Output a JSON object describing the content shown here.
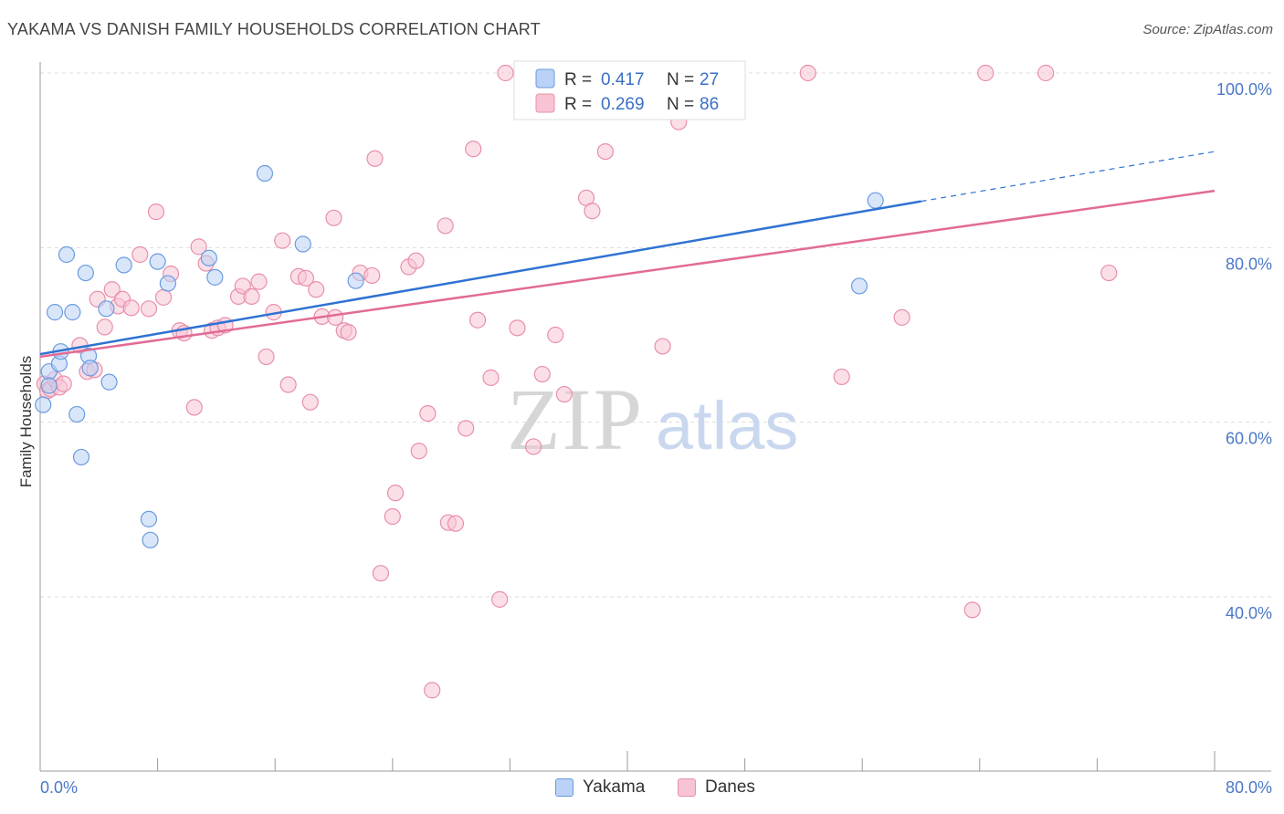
{
  "title": "YAKAMA VS DANISH FAMILY HOUSEHOLDS CORRELATION CHART",
  "source": "Source: ZipAtlas.com",
  "watermark": {
    "zip": "ZIP",
    "atlas": "atlas"
  },
  "legend": {
    "r_label": "R =",
    "n_label": "N =",
    "entries": [
      {
        "r": "0.417",
        "n": "27"
      },
      {
        "r": "0.269",
        "n": "86"
      }
    ]
  },
  "colors": {
    "yakama_fill": "#b9d2f5",
    "yakama_stroke": "#6a9be0",
    "yakama_line": "#2f72d2",
    "danes_fill": "#f8c4d4",
    "danes_stroke": "#e88fab",
    "danes_line": "#e26b95",
    "tick_label": "#4a78c8",
    "grid": "#dddddd"
  },
  "chart_data": {
    "type": "scatter",
    "title": "YAKAMA VS DANISH FAMILY HOUSEHOLDS CORRELATION CHART",
    "xlabel": "",
    "ylabel": "Family Households",
    "xlim": [
      0,
      80
    ],
    "ylim": [
      20,
      104
    ],
    "x_tick_labels": [
      "0.0%",
      "80.0%"
    ],
    "y_ticks": [
      40,
      60,
      80,
      100
    ],
    "y_tick_labels": [
      "40.0%",
      "60.0%",
      "80.0%",
      "100.0%"
    ],
    "grid": true,
    "legend_position": "top-center",
    "series": [
      {
        "name": "Yakama",
        "r": 0.417,
        "n": 27,
        "trend": {
          "x0": 0,
          "y0": 67.8,
          "x1": 60,
          "y1": 85.3,
          "dashed_to_x": 80,
          "dashed_to_y": 91.0
        },
        "points": [
          [
            0.2,
            62.0
          ],
          [
            0.6,
            65.8
          ],
          [
            0.6,
            64.2
          ],
          [
            1.0,
            72.6
          ],
          [
            1.3,
            66.7
          ],
          [
            1.4,
            68.1
          ],
          [
            1.8,
            79.2
          ],
          [
            2.2,
            72.6
          ],
          [
            2.5,
            60.9
          ],
          [
            2.8,
            56.0
          ],
          [
            3.1,
            77.1
          ],
          [
            3.3,
            67.6
          ],
          [
            3.4,
            66.2
          ],
          [
            4.5,
            73.0
          ],
          [
            4.7,
            64.6
          ],
          [
            5.7,
            78.0
          ],
          [
            7.4,
            48.9
          ],
          [
            7.5,
            46.5
          ],
          [
            8.0,
            78.4
          ],
          [
            8.7,
            75.9
          ],
          [
            11.5,
            78.8
          ],
          [
            11.9,
            76.6
          ],
          [
            15.3,
            88.5
          ],
          [
            17.9,
            80.4
          ],
          [
            21.5,
            76.2
          ],
          [
            55.8,
            75.6
          ],
          [
            56.9,
            85.4
          ]
        ]
      },
      {
        "name": "Danes",
        "r": 0.269,
        "n": 86,
        "trend": {
          "x0": 0,
          "y0": 67.5,
          "x1": 80,
          "y1": 86.5
        },
        "points": [
          [
            0.3,
            64.4
          ],
          [
            0.5,
            63.6
          ],
          [
            0.7,
            63.8
          ],
          [
            1.0,
            64.9
          ],
          [
            1.3,
            64.0
          ],
          [
            1.6,
            64.4
          ],
          [
            2.7,
            68.8
          ],
          [
            3.2,
            65.8
          ],
          [
            3.7,
            66.0
          ],
          [
            3.9,
            74.1
          ],
          [
            4.4,
            70.9
          ],
          [
            4.9,
            75.2
          ],
          [
            5.3,
            73.3
          ],
          [
            5.6,
            74.1
          ],
          [
            6.2,
            73.1
          ],
          [
            6.8,
            79.2
          ],
          [
            7.4,
            73.0
          ],
          [
            7.9,
            84.1
          ],
          [
            8.4,
            74.3
          ],
          [
            8.9,
            77.0
          ],
          [
            9.5,
            70.5
          ],
          [
            9.8,
            70.2
          ],
          [
            10.5,
            61.7
          ],
          [
            10.8,
            80.1
          ],
          [
            11.3,
            78.2
          ],
          [
            11.7,
            70.5
          ],
          [
            12.1,
            70.8
          ],
          [
            12.6,
            71.1
          ],
          [
            13.5,
            74.4
          ],
          [
            13.8,
            75.6
          ],
          [
            14.4,
            74.4
          ],
          [
            14.9,
            76.1
          ],
          [
            15.4,
            67.5
          ],
          [
            15.9,
            72.6
          ],
          [
            16.5,
            80.8
          ],
          [
            16.9,
            64.3
          ],
          [
            17.6,
            76.7
          ],
          [
            18.1,
            76.5
          ],
          [
            18.4,
            62.3
          ],
          [
            18.8,
            75.2
          ],
          [
            19.2,
            72.1
          ],
          [
            20.0,
            83.4
          ],
          [
            20.1,
            72.0
          ],
          [
            20.7,
            70.5
          ],
          [
            21.0,
            70.3
          ],
          [
            21.8,
            77.1
          ],
          [
            22.6,
            76.8
          ],
          [
            22.8,
            90.2
          ],
          [
            23.2,
            42.7
          ],
          [
            24.0,
            49.2
          ],
          [
            24.2,
            51.9
          ],
          [
            25.1,
            77.8
          ],
          [
            25.6,
            78.5
          ],
          [
            25.8,
            56.7
          ],
          [
            26.4,
            61.0
          ],
          [
            26.7,
            29.3
          ],
          [
            27.6,
            82.5
          ],
          [
            27.8,
            48.5
          ],
          [
            28.3,
            48.4
          ],
          [
            29.0,
            59.3
          ],
          [
            29.5,
            91.3
          ],
          [
            29.8,
            71.7
          ],
          [
            30.7,
            65.1
          ],
          [
            31.3,
            39.7
          ],
          [
            31.7,
            100.0
          ],
          [
            32.5,
            70.8
          ],
          [
            33.6,
            57.2
          ],
          [
            34.2,
            65.5
          ],
          [
            35.1,
            70.0
          ],
          [
            35.7,
            63.2
          ],
          [
            36.7,
            100.0
          ],
          [
            37.2,
            85.7
          ],
          [
            37.6,
            84.2
          ],
          [
            38.5,
            91.0
          ],
          [
            41.4,
            100.0
          ],
          [
            42.4,
            68.7
          ],
          [
            43.5,
            94.4
          ],
          [
            44.2,
            100.0
          ],
          [
            52.3,
            100.0
          ],
          [
            54.6,
            65.2
          ],
          [
            58.7,
            72.0
          ],
          [
            63.5,
            38.5
          ],
          [
            64.4,
            100.0
          ],
          [
            68.5,
            100.0
          ],
          [
            72.8,
            77.1
          ],
          [
            40.8,
            100.0
          ]
        ]
      }
    ]
  }
}
